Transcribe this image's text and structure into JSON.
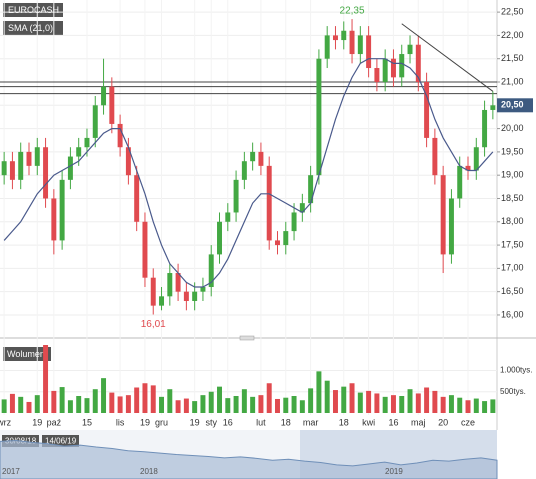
{
  "chart_data": {
    "type": "candlestick",
    "legend": [
      "EUROCASH",
      "SMA (21,0)"
    ],
    "categories": [
      "wrz",
      null,
      null,
      null,
      "19",
      null,
      "paź",
      null,
      null,
      null,
      "15",
      null,
      null,
      null,
      "lis",
      null,
      null,
      "19",
      null,
      "gru",
      null,
      null,
      null,
      "19",
      null,
      "sty",
      null,
      "16",
      null,
      null,
      null,
      "lut",
      null,
      null,
      "18",
      null,
      null,
      "mar",
      null,
      null,
      null,
      "18",
      null,
      null,
      "kwi",
      null,
      null,
      "16",
      null,
      null,
      "maj",
      null,
      null,
      "20",
      null,
      null,
      "cze",
      null,
      null,
      null
    ],
    "open": [
      19.0,
      19.3,
      18.9,
      19.5,
      19.2,
      19.6,
      18.5,
      17.6,
      18.9,
      19.4,
      19.6,
      19.8,
      20.5,
      20.9,
      20.1,
      19.6,
      19.0,
      18.0,
      16.8,
      16.2,
      16.4,
      16.9,
      16.5,
      16.3,
      16.5,
      16.6,
      17.3,
      18.0,
      18.2,
      18.9,
      19.3,
      19.5,
      19.2,
      17.6,
      17.5,
      17.8,
      18.2,
      18.4,
      19.0,
      21.5,
      22.0,
      21.9,
      22.1,
      21.6,
      22.0,
      21.3,
      21.0,
      21.5,
      21.1,
      21.6,
      21.8,
      21.0,
      19.8,
      19.0,
      17.3,
      18.5,
      19.2,
      19.1,
      19.6,
      20.4
    ],
    "high": [
      19.5,
      19.5,
      19.7,
      19.7,
      19.8,
      19.8,
      18.7,
      19.1,
      19.6,
      19.8,
      20.0,
      20.7,
      21.5,
      21.1,
      20.3,
      19.8,
      19.2,
      18.2,
      17.0,
      16.6,
      17.1,
      17.1,
      16.7,
      16.7,
      16.8,
      17.5,
      18.2,
      18.4,
      19.1,
      19.5,
      19.7,
      19.7,
      19.4,
      17.8,
      18.0,
      18.4,
      18.6,
      19.2,
      21.7,
      22.2,
      22.2,
      22.3,
      22.35,
      22.2,
      22.2,
      21.5,
      21.7,
      21.7,
      21.8,
      22.0,
      22.0,
      21.2,
      20.0,
      19.2,
      18.7,
      19.4,
      19.4,
      19.8,
      20.6,
      20.8
    ],
    "low": [
      18.8,
      18.7,
      18.7,
      19.0,
      19.0,
      18.3,
      17.3,
      17.4,
      18.7,
      19.2,
      19.4,
      19.6,
      20.3,
      19.9,
      19.4,
      18.8,
      17.8,
      16.6,
      16.01,
      16.1,
      16.2,
      16.3,
      16.1,
      16.1,
      16.3,
      16.4,
      17.1,
      17.8,
      18.0,
      18.7,
      19.1,
      19.0,
      17.4,
      17.3,
      17.3,
      17.6,
      18.0,
      18.2,
      18.8,
      21.3,
      21.7,
      21.7,
      21.4,
      21.4,
      21.1,
      20.8,
      20.8,
      20.9,
      20.9,
      21.4,
      20.8,
      19.6,
      18.8,
      16.9,
      17.1,
      18.3,
      18.9,
      18.9,
      19.4,
      20.2
    ],
    "close": [
      19.3,
      18.9,
      19.5,
      19.2,
      19.6,
      18.5,
      17.6,
      18.9,
      19.4,
      19.6,
      19.8,
      20.5,
      20.9,
      20.1,
      19.6,
      19.0,
      18.0,
      16.8,
      16.2,
      16.4,
      16.9,
      16.5,
      16.3,
      16.5,
      16.6,
      17.3,
      18.0,
      18.2,
      18.9,
      19.3,
      19.5,
      19.2,
      17.6,
      17.5,
      17.8,
      18.2,
      18.4,
      19.0,
      21.5,
      22.0,
      21.9,
      22.1,
      21.6,
      22.0,
      21.3,
      21.0,
      21.5,
      21.1,
      21.6,
      21.8,
      21.0,
      19.8,
      19.0,
      17.3,
      18.5,
      19.2,
      19.1,
      19.6,
      20.4,
      20.5
    ],
    "sma": {
      "name": "SMA (21,0)",
      "color": "#4a5a8c",
      "values": [
        17.6,
        17.8,
        18.0,
        18.3,
        18.6,
        18.8,
        19.0,
        19.1,
        19.2,
        19.3,
        19.5,
        19.7,
        19.9,
        20.0,
        20.0,
        19.6,
        19.1,
        18.6,
        18.0,
        17.5,
        17.1,
        16.9,
        16.7,
        16.6,
        16.6,
        16.7,
        16.9,
        17.2,
        17.6,
        18.0,
        18.4,
        18.6,
        18.6,
        18.5,
        18.4,
        18.3,
        18.2,
        18.4,
        19.0,
        19.6,
        20.2,
        20.7,
        21.1,
        21.4,
        21.5,
        21.5,
        21.5,
        21.4,
        21.4,
        21.3,
        21.1,
        20.7,
        20.2,
        19.8,
        19.5,
        19.2,
        19.1,
        19.1,
        19.3,
        19.5
      ]
    },
    "up_color": "#43a843",
    "down_color": "#e04a4f",
    "ylim": [
      15.57,
      22.76
    ],
    "yticks": [
      {
        "value": 16.0,
        "label": "16,00"
      },
      {
        "value": 16.5,
        "label": "16,50"
      },
      {
        "value": 17.0,
        "label": "17,00"
      },
      {
        "value": 17.5,
        "label": "17,50"
      },
      {
        "value": 18.0,
        "label": "18,00"
      },
      {
        "value": 18.5,
        "label": "18,50"
      },
      {
        "value": 19.0,
        "label": "19,00"
      },
      {
        "value": 19.5,
        "label": "19,50"
      },
      {
        "value": 20.0,
        "label": "20,00"
      },
      {
        "value": 20.5,
        "label": "20,50"
      },
      {
        "value": 21.0,
        "label": "21,00"
      },
      {
        "value": 21.5,
        "label": "21,50"
      },
      {
        "value": 22.0,
        "label": "22,00"
      },
      {
        "value": 22.5,
        "label": "22,50"
      }
    ],
    "grid": true,
    "annotations": [
      {
        "label": "22,35",
        "value": 22.35,
        "color": "#43a843"
      },
      {
        "label": "16,01",
        "value": 16.01,
        "color": "#e04a4f"
      }
    ],
    "price_tag": {
      "value": 20.5,
      "label": "20,50",
      "color": "#3d5a80"
    },
    "levels": [
      21.0,
      20.9,
      20.75
    ],
    "trendline": [
      22.25,
      20.8
    ],
    "volume": {
      "name": "Wolumen",
      "ylim": [
        0,
        1600000
      ],
      "yticks": [
        {
          "value": 1000000,
          "label": "1.000tys."
        },
        {
          "value": 500000,
          "label": "500tys."
        }
      ],
      "values": [
        320000,
        450000,
        380000,
        260000,
        420000,
        1600000,
        520000,
        610000,
        300000,
        400000,
        350000,
        560000,
        820000,
        480000,
        390000,
        420000,
        600000,
        700000,
        650000,
        380000,
        560000,
        300000,
        340000,
        280000,
        420000,
        500000,
        620000,
        350000,
        400000,
        560000,
        380000,
        420000,
        700000,
        330000,
        360000,
        400000,
        300000,
        580000,
        980000,
        760000,
        540000,
        620000,
        700000,
        480000,
        520000,
        460000,
        380000,
        420000,
        400000,
        560000,
        460000,
        600000,
        520000,
        380000,
        420000,
        360000,
        300000,
        340000,
        280000,
        320000
      ]
    },
    "navigator": {
      "range": [
        "30/08/18",
        "14/06/19"
      ],
      "years": [
        "2017",
        "2018",
        "2019"
      ],
      "ylim": [
        0,
        100
      ],
      "values": [
        80,
        82,
        78,
        75,
        70,
        72,
        68,
        65,
        60,
        58,
        55,
        52,
        50,
        48,
        45,
        47,
        44,
        40,
        42,
        38,
        35,
        30,
        28,
        32,
        36,
        30,
        34,
        40,
        38,
        42,
        45,
        40
      ]
    }
  }
}
